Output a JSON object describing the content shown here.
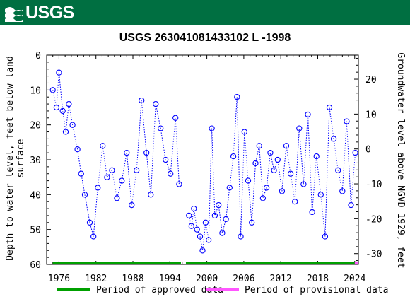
{
  "header": {
    "logo_text": "USGS",
    "logo_icon": "usgs-wave-icon",
    "banner_color": "#006f41"
  },
  "chart_data": {
    "type": "scatter",
    "title": "USGS 263041081433102 L  -1998",
    "ylabel_left": "Depth to water level, feet below land surface",
    "ylabel_left_lines": [
      "Depth to water level, feet below land",
      "surface"
    ],
    "ylabel_right": "Groundwater level above NGVD 1929, feet",
    "xlim": [
      1974,
      2024.6
    ],
    "ylim_left": [
      0,
      60
    ],
    "ylim_right": [
      -33.1,
      26.9
    ],
    "x_ticks": [
      "1976",
      "1982",
      "1988",
      "1994",
      "2000",
      "2006",
      "2012",
      "2018",
      "2024"
    ],
    "y_ticks_left": [
      "0",
      "10",
      "20",
      "30",
      "40",
      "50",
      "60"
    ],
    "y_ticks_right": [
      "20",
      "10",
      "0",
      "-10",
      "-20",
      "-30"
    ],
    "marker_color": "#0000ff",
    "gap_years": [
      1995.8,
      1996.9
    ],
    "series": [
      {
        "segment": "1975-1996",
        "x": [
          1975.0,
          1975.6,
          1976.0,
          1976.6,
          1977.1,
          1977.6,
          1978.2,
          1979.0,
          1979.6,
          1980.2,
          1981.0,
          1981.6,
          1982.3,
          1983.1,
          1983.8,
          1984.6,
          1985.4,
          1986.2,
          1987.0,
          1987.8,
          1988.6,
          1989.4,
          1990.2,
          1990.9,
          1991.7,
          1992.5,
          1993.3,
          1994.1,
          1994.9,
          1995.5
        ],
        "depth": [
          10,
          15,
          5,
          16,
          22,
          14,
          20,
          27,
          34,
          40,
          48,
          52,
          38,
          26,
          35,
          33,
          41,
          36,
          28,
          43,
          33,
          13,
          28,
          40,
          14,
          21,
          30,
          34,
          18,
          37
        ]
      },
      {
        "segment": "1997-2024",
        "x": [
          1997.1,
          1997.5,
          1997.9,
          1998.4,
          1998.9,
          1999.3,
          1999.8,
          2000.3,
          2000.8,
          2001.3,
          2001.9,
          2002.5,
          2003.1,
          2003.7,
          2004.3,
          2004.9,
          2005.5,
          2006.1,
          2006.7,
          2007.3,
          2007.9,
          2008.5,
          2009.1,
          2009.7,
          2010.3,
          2010.9,
          2011.5,
          2012.2,
          2012.9,
          2013.6,
          2014.3,
          2015.0,
          2015.7,
          2016.4,
          2017.1,
          2017.8,
          2018.5,
          2019.2,
          2019.9,
          2020.6,
          2021.3,
          2022.0,
          2022.7,
          2023.4,
          2024.1
        ],
        "depth": [
          46,
          49,
          44,
          50,
          52,
          56,
          48,
          53,
          21,
          46,
          43,
          51,
          47,
          38,
          29,
          12,
          52,
          22,
          36,
          48,
          31,
          26,
          41,
          38,
          28,
          33,
          30,
          39,
          26,
          34,
          42,
          21,
          37,
          17,
          45,
          29,
          40,
          52,
          15,
          24,
          33,
          39,
          19,
          43,
          28
        ]
      }
    ],
    "legend": [
      {
        "label": "Period of approved data",
        "color": "#00a000",
        "range": [
          1975.0,
          1995.8
        ]
      },
      {
        "label": "Period of approved data",
        "color": "#00a000",
        "range": [
          1996.6,
          2024.0
        ]
      },
      {
        "label": "Period of provisional data",
        "color": "#ff55ff",
        "range": [
          2024.0,
          2024.6
        ]
      }
    ],
    "legend_labels": {
      "approved": "Period of approved data",
      "provisional": "Period of provisional data"
    }
  }
}
